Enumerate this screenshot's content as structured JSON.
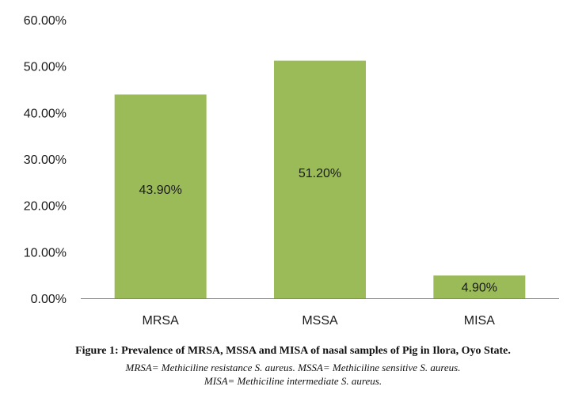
{
  "chart_data": {
    "type": "bar",
    "categories": [
      "MRSA",
      "MSSA",
      "MISA"
    ],
    "values": [
      43.9,
      51.2,
      4.9
    ],
    "data_labels": [
      "43.90%",
      "51.20%",
      "4.90%"
    ],
    "ylim": [
      0,
      60
    ],
    "yticks": [
      0,
      10,
      20,
      30,
      40,
      50,
      60
    ],
    "ytick_labels": [
      "0.00%",
      "10.00%",
      "20.00%",
      "30.00%",
      "40.00%",
      "50.00%",
      "60.00%"
    ],
    "title": "",
    "xlabel": "",
    "ylabel": "",
    "grid": false,
    "legend": "none"
  },
  "colors": {
    "bar": "#9bbb59",
    "axis": "#868686"
  },
  "caption": {
    "title": "Figure 1: Prevalence of MRSA, MSSA and MISA of nasal samples of Pig in Ilora, Oyo State.",
    "note_line1": "MRSA= Methiciline resistance S. aureus.  MSSA= Methiciline sensitive S. aureus.",
    "note_line2": "MISA= Methiciline intermediate S. aureus."
  }
}
